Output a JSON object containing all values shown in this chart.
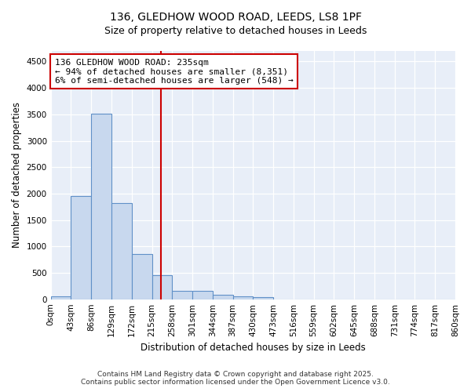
{
  "title": "136, GLEDHOW WOOD ROAD, LEEDS, LS8 1PF",
  "subtitle": "Size of property relative to detached houses in Leeds",
  "xlabel": "Distribution of detached houses by size in Leeds",
  "ylabel": "Number of detached properties",
  "bar_edges": [
    0,
    43,
    86,
    129,
    172,
    215,
    258,
    301,
    344,
    387,
    430,
    473,
    516,
    559,
    602,
    645,
    688,
    731,
    774,
    817,
    860
  ],
  "bar_heights": [
    50,
    1950,
    3520,
    1820,
    860,
    450,
    160,
    160,
    80,
    55,
    45,
    0,
    0,
    0,
    0,
    0,
    0,
    0,
    0,
    0
  ],
  "bar_color": "#c8d8ee",
  "bar_edgecolor": "#6090c8",
  "vline_x": 235,
  "vline_color": "#cc0000",
  "annotation_text": "136 GLEDHOW WOOD ROAD: 235sqm\n← 94% of detached houses are smaller (8,351)\n6% of semi-detached houses are larger (548) →",
  "annotation_box_edgecolor": "#cc0000",
  "annotation_box_facecolor": "#ffffff",
  "ylim": [
    0,
    4700
  ],
  "yticks": [
    0,
    500,
    1000,
    1500,
    2000,
    2500,
    3000,
    3500,
    4000,
    4500
  ],
  "xtick_labels": [
    "0sqm",
    "43sqm",
    "86sqm",
    "129sqm",
    "172sqm",
    "215sqm",
    "258sqm",
    "301sqm",
    "344sqm",
    "387sqm",
    "430sqm",
    "473sqm",
    "516sqm",
    "559sqm",
    "602sqm",
    "645sqm",
    "688sqm",
    "731sqm",
    "774sqm",
    "817sqm",
    "860sqm"
  ],
  "footer_line1": "Contains HM Land Registry data © Crown copyright and database right 2025.",
  "footer_line2": "Contains public sector information licensed under the Open Government Licence v3.0.",
  "fig_bg_color": "#ffffff",
  "plot_bg_color": "#e8eef8",
  "title_fontsize": 10,
  "subtitle_fontsize": 9,
  "axis_label_fontsize": 8.5,
  "tick_fontsize": 7.5,
  "footer_fontsize": 6.5,
  "annotation_fontsize": 8
}
